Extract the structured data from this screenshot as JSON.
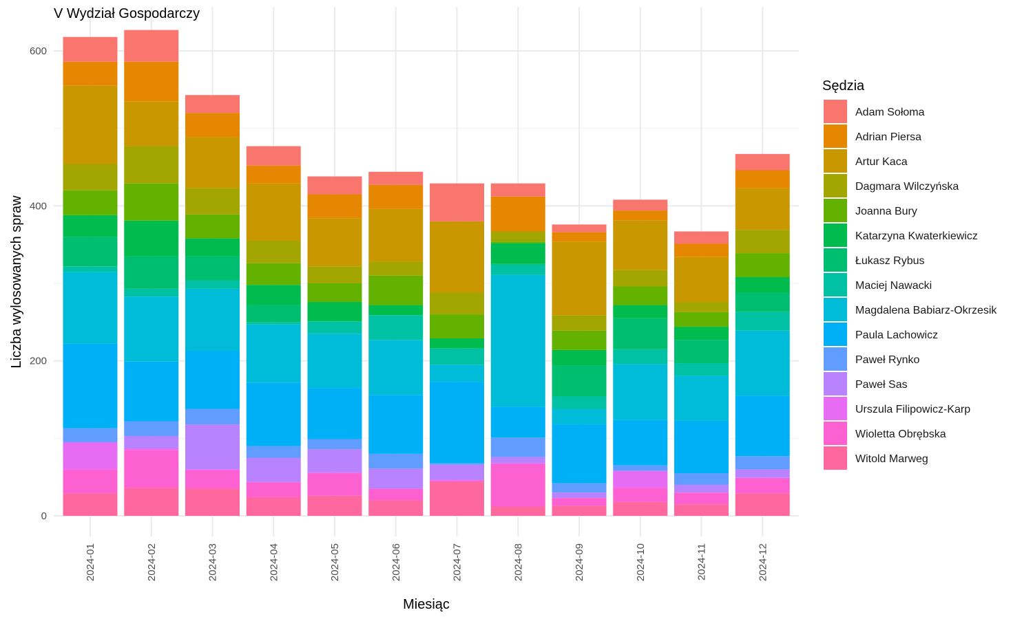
{
  "chart_data": {
    "type": "bar",
    "stacked": true,
    "title": "V Wydział Gospodarczy",
    "xlabel": "Miesiąc",
    "ylabel": "Liczba wylosowanych spraw",
    "ylim": [
      0,
      640
    ],
    "yticks": [
      0,
      200,
      400,
      600
    ],
    "grid": true,
    "legend_title": "Sędzia",
    "legend_position": "right",
    "categories": [
      "2024-01",
      "2024-02",
      "2024-03",
      "2024-04",
      "2024-05",
      "2024-06",
      "2024-07",
      "2024-08",
      "2024-09",
      "2024-10",
      "2024-11",
      "2024-12"
    ],
    "series": [
      {
        "name": "Witold Marweg",
        "color": "#FF689F",
        "values": [
          29,
          36,
          35,
          24,
          26,
          20,
          44,
          12,
          13,
          18,
          15,
          29
        ]
      },
      {
        "name": "Wioletta Obrębska",
        "color": "#FD61D1",
        "values": [
          31,
          49,
          24,
          19,
          29,
          15,
          2,
          55,
          10,
          18,
          15,
          20
        ]
      },
      {
        "name": "Urszula Filipowicz-Karp",
        "color": "#E76BF3",
        "values": [
          35,
          2,
          1,
          1,
          1,
          0,
          0,
          1,
          0,
          22,
          0,
          0
        ]
      },
      {
        "name": "Paweł Sas",
        "color": "#B983FF",
        "values": [
          0,
          16,
          58,
          31,
          30,
          26,
          20,
          8,
          7,
          0,
          10,
          11
        ]
      },
      {
        "name": "Paweł Rynko",
        "color": "#619CFF",
        "values": [
          18,
          19,
          20,
          15,
          13,
          19,
          2,
          25,
          12,
          7,
          15,
          17
        ]
      },
      {
        "name": "Paula Lachowicz",
        "color": "#00B0F6",
        "values": [
          109,
          77,
          75,
          82,
          66,
          76,
          105,
          40,
          76,
          59,
          68,
          78
        ]
      },
      {
        "name": "Magdalena Babiarz-Okrzesik",
        "color": "#00BCD8",
        "values": [
          93,
          84,
          80,
          75,
          70,
          71,
          22,
          170,
          20,
          72,
          58,
          84
        ]
      },
      {
        "name": "Maciej Nawacki",
        "color": "#00C1A3",
        "values": [
          7,
          10,
          11,
          3,
          16,
          32,
          21,
          13,
          16,
          19,
          16,
          24
        ]
      },
      {
        "name": "Łukasz Rybus",
        "color": "#00BE70",
        "values": [
          38,
          42,
          31,
          22,
          0,
          0,
          0,
          1,
          40,
          40,
          30,
          25
        ]
      },
      {
        "name": "Katarzyna Kwaterkiewicz",
        "color": "#00BB4E",
        "values": [
          28,
          46,
          23,
          26,
          25,
          13,
          13,
          27,
          20,
          17,
          17,
          20
        ]
      },
      {
        "name": "Joanna Bury",
        "color": "#64B200",
        "values": [
          32,
          48,
          31,
          28,
          24,
          38,
          31,
          2,
          25,
          24,
          19,
          31
        ]
      },
      {
        "name": "Dagmara Wilczyńska",
        "color": "#A3A500",
        "values": [
          34,
          48,
          34,
          29,
          22,
          18,
          28,
          13,
          20,
          21,
          13,
          30
        ]
      },
      {
        "name": "Artur Kaca",
        "color": "#C99800",
        "values": [
          101,
          58,
          66,
          74,
          62,
          68,
          92,
          0,
          95,
          64,
          58,
          54
        ]
      },
      {
        "name": "Adrian Piersa",
        "color": "#E58700",
        "values": [
          31,
          51,
          31,
          23,
          31,
          31,
          0,
          45,
          12,
          13,
          17,
          23
        ]
      },
      {
        "name": "Adam Sołoma",
        "color": "#F8766D",
        "values": [
          32,
          41,
          23,
          25,
          23,
          17,
          49,
          17,
          10,
          14,
          16,
          21
        ]
      }
    ]
  }
}
